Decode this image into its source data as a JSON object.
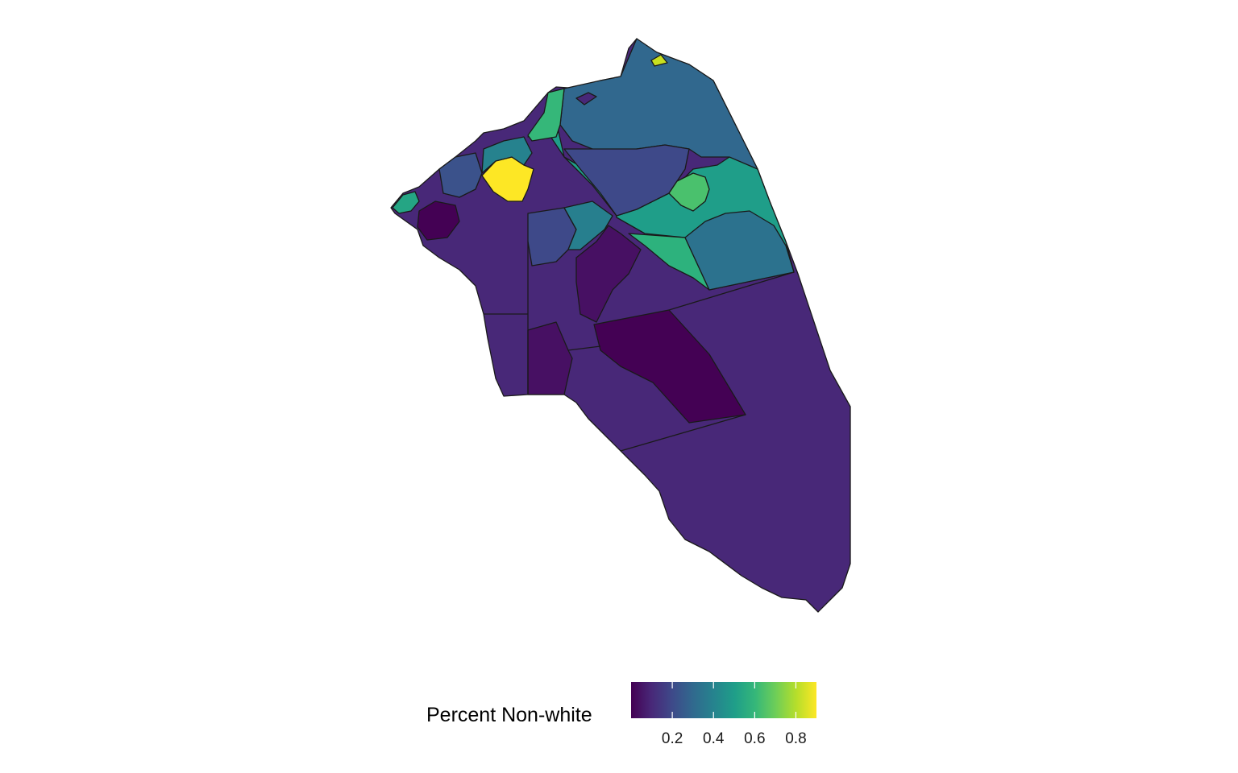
{
  "legend": {
    "title": "Percent Non-white",
    "ticks": [
      "0.2",
      "0.4",
      "0.6",
      "0.8"
    ],
    "tick_values": [
      0.2,
      0.4,
      0.6,
      0.8
    ],
    "range": [
      0.0,
      0.9
    ],
    "colormap": "viridis",
    "position": "bottom"
  },
  "colors": {
    "viridis": [
      "#440154",
      "#482878",
      "#3e4989",
      "#31688e",
      "#26828e",
      "#1f9e89",
      "#35b779",
      "#6ece58",
      "#b5de2b",
      "#fde725"
    ],
    "border": "#1a1a1a",
    "background": "#ffffff"
  },
  "chart_data": {
    "type": "choropleth",
    "variable": "Percent Non-white",
    "scale": "viridis continuous",
    "legend_placement": "bottom"
  }
}
